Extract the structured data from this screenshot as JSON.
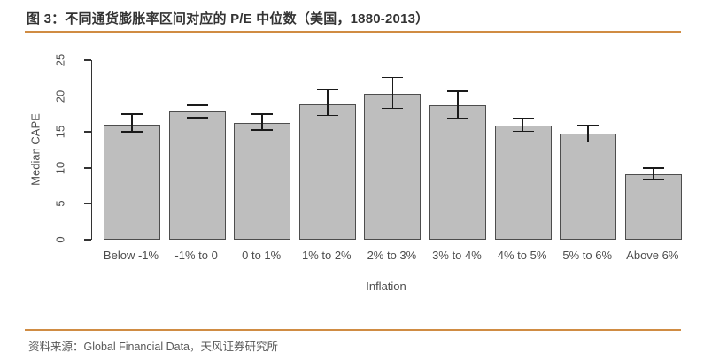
{
  "header": {
    "title": "图 3：不同通货膨胀率区间对应的 P/E 中位数（美国，1880-2013）"
  },
  "chart_data": {
    "type": "bar",
    "title": "图 3：不同通货膨胀率区间对应的 P/E 中位数（美国，1880-2013）",
    "categories": [
      "Below -1%",
      "-1% to 0",
      "0 to 1%",
      "1% to 2%",
      "2% to 3%",
      "3% to 4%",
      "4% to 5%",
      "5% to 6%",
      "Above 6%"
    ],
    "values": [
      16.0,
      17.8,
      16.2,
      18.9,
      20.3,
      18.7,
      15.9,
      14.8,
      9.1
    ],
    "error_low": [
      15.0,
      17.0,
      15.3,
      17.3,
      18.3,
      16.9,
      15.1,
      13.6,
      8.4
    ],
    "error_high": [
      17.5,
      18.7,
      17.5,
      20.9,
      22.6,
      20.7,
      16.9,
      15.9,
      10.0
    ],
    "xlabel": "Inflation",
    "ylabel": "Median CAPE",
    "ylim": [
      0,
      25
    ],
    "yticks": [
      0,
      5,
      10,
      15,
      20,
      25
    ],
    "grid": false,
    "legend": false,
    "bar_fill": "#bebebe",
    "bar_border": "#4d4d4d",
    "error_color": "#1a1a1a"
  },
  "footer": {
    "source": "资料来源：Global Financial Data，天风证券研究所"
  },
  "colors": {
    "accent_rule": "#d08c43",
    "title_text": "#333333",
    "axis_text": "#4d4d4d",
    "footer_text": "#595959"
  }
}
